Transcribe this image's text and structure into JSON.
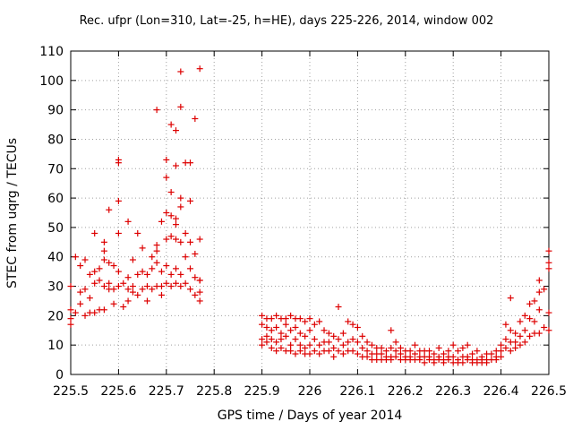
{
  "chart_data": {
    "type": "scatter",
    "title": "Rec. ufpr (Lon=310, Lat=-25, h=HE), days 225-226, 2014, window 002",
    "xlabel": "GPS time / Days of year 2014",
    "ylabel": "STEC from uqrg / TECUs",
    "xlim": [
      225.5,
      226.5
    ],
    "ylim": [
      0,
      110
    ],
    "xticks": [
      "225.5",
      "225.6",
      "225.7",
      "225.8",
      "225.9",
      "226",
      "226.1",
      "226.2",
      "226.3",
      "226.4",
      "226.5"
    ],
    "yticks": [
      "0",
      "10",
      "20",
      "30",
      "40",
      "50",
      "60",
      "70",
      "80",
      "90",
      "100",
      "110"
    ],
    "grid": true,
    "marker": "+",
    "color": "#dd0000",
    "series": [
      {
        "points": [
          [
            225.5,
            17
          ],
          [
            225.5,
            19
          ],
          [
            225.5,
            22
          ],
          [
            225.5,
            30
          ],
          [
            225.51,
            21
          ],
          [
            225.51,
            40
          ],
          [
            225.52,
            24
          ],
          [
            225.52,
            37
          ],
          [
            225.52,
            28
          ],
          [
            225.53,
            20
          ],
          [
            225.53,
            39
          ],
          [
            225.53,
            29
          ],
          [
            225.54,
            26
          ],
          [
            225.54,
            34
          ],
          [
            225.54,
            21
          ],
          [
            225.55,
            48
          ],
          [
            225.55,
            35
          ],
          [
            225.55,
            31
          ],
          [
            225.55,
            21
          ],
          [
            225.56,
            32
          ],
          [
            225.56,
            36
          ],
          [
            225.56,
            22
          ],
          [
            225.57,
            42
          ],
          [
            225.57,
            45
          ],
          [
            225.57,
            39
          ],
          [
            225.57,
            30
          ],
          [
            225.57,
            22
          ],
          [
            225.58,
            56
          ],
          [
            225.58,
            38
          ],
          [
            225.58,
            31
          ],
          [
            225.58,
            29
          ],
          [
            225.59,
            37
          ],
          [
            225.59,
            24
          ],
          [
            225.59,
            29
          ],
          [
            225.6,
            73
          ],
          [
            225.6,
            72
          ],
          [
            225.6,
            59
          ],
          [
            225.6,
            48
          ],
          [
            225.6,
            35
          ],
          [
            225.6,
            30
          ],
          [
            225.61,
            23
          ],
          [
            225.61,
            31
          ],
          [
            225.62,
            52
          ],
          [
            225.62,
            33
          ],
          [
            225.62,
            29
          ],
          [
            225.62,
            25
          ],
          [
            225.63,
            39
          ],
          [
            225.63,
            30
          ],
          [
            225.63,
            28
          ],
          [
            225.64,
            48
          ],
          [
            225.64,
            34
          ],
          [
            225.64,
            27
          ],
          [
            225.65,
            43
          ],
          [
            225.65,
            35
          ],
          [
            225.65,
            29
          ],
          [
            225.66,
            34
          ],
          [
            225.66,
            30
          ],
          [
            225.66,
            25
          ],
          [
            225.67,
            40
          ],
          [
            225.67,
            36
          ],
          [
            225.67,
            29
          ],
          [
            225.68,
            44
          ],
          [
            225.68,
            42
          ],
          [
            225.68,
            90
          ],
          [
            225.68,
            38
          ],
          [
            225.68,
            30
          ],
          [
            225.69,
            52
          ],
          [
            225.69,
            35
          ],
          [
            225.69,
            30
          ],
          [
            225.69,
            27
          ],
          [
            225.7,
            73
          ],
          [
            225.7,
            67
          ],
          [
            225.7,
            55
          ],
          [
            225.7,
            46
          ],
          [
            225.7,
            37
          ],
          [
            225.7,
            31
          ],
          [
            225.71,
            85
          ],
          [
            225.71,
            62
          ],
          [
            225.71,
            54
          ],
          [
            225.71,
            47
          ],
          [
            225.71,
            34
          ],
          [
            225.71,
            30
          ],
          [
            225.72,
            83
          ],
          [
            225.72,
            71
          ],
          [
            225.72,
            53
          ],
          [
            225.72,
            51
          ],
          [
            225.72,
            46
          ],
          [
            225.72,
            36
          ],
          [
            225.72,
            31
          ],
          [
            225.73,
            103
          ],
          [
            225.73,
            91
          ],
          [
            225.73,
            60
          ],
          [
            225.73,
            57
          ],
          [
            225.73,
            45
          ],
          [
            225.73,
            34
          ],
          [
            225.73,
            30
          ],
          [
            225.74,
            72
          ],
          [
            225.74,
            48
          ],
          [
            225.74,
            40
          ],
          [
            225.74,
            31
          ],
          [
            225.75,
            72
          ],
          [
            225.75,
            59
          ],
          [
            225.75,
            45
          ],
          [
            225.75,
            36
          ],
          [
            225.75,
            29
          ],
          [
            225.76,
            87
          ],
          [
            225.76,
            41
          ],
          [
            225.76,
            33
          ],
          [
            225.76,
            27
          ],
          [
            225.77,
            104
          ],
          [
            225.77,
            46
          ],
          [
            225.77,
            32
          ],
          [
            225.77,
            32
          ],
          [
            225.77,
            28
          ],
          [
            225.77,
            25
          ],
          [
            225.9,
            20
          ],
          [
            225.9,
            17
          ],
          [
            225.9,
            12
          ],
          [
            225.9,
            10
          ],
          [
            225.91,
            19
          ],
          [
            225.91,
            16
          ],
          [
            225.91,
            13
          ],
          [
            225.91,
            11
          ],
          [
            225.92,
            19
          ],
          [
            225.92,
            15
          ],
          [
            225.92,
            12
          ],
          [
            225.92,
            9
          ],
          [
            225.93,
            20
          ],
          [
            225.93,
            16
          ],
          [
            225.93,
            11
          ],
          [
            225.93,
            8
          ],
          [
            225.94,
            19
          ],
          [
            225.94,
            14
          ],
          [
            225.94,
            12
          ],
          [
            225.94,
            9
          ],
          [
            225.95,
            19
          ],
          [
            225.95,
            17
          ],
          [
            225.95,
            13
          ],
          [
            225.95,
            8
          ],
          [
            225.96,
            20
          ],
          [
            225.96,
            15
          ],
          [
            225.96,
            10
          ],
          [
            225.96,
            8
          ],
          [
            225.97,
            19
          ],
          [
            225.97,
            16
          ],
          [
            225.97,
            12
          ],
          [
            225.97,
            7
          ],
          [
            225.98,
            19
          ],
          [
            225.98,
            14
          ],
          [
            225.98,
            10
          ],
          [
            225.98,
            8
          ],
          [
            225.99,
            18
          ],
          [
            225.99,
            13
          ],
          [
            225.99,
            9
          ],
          [
            225.99,
            7
          ],
          [
            226.0,
            19
          ],
          [
            226.0,
            15
          ],
          [
            226.0,
            10
          ],
          [
            226.0,
            7
          ],
          [
            226.01,
            17
          ],
          [
            226.01,
            12
          ],
          [
            226.01,
            8
          ],
          [
            226.02,
            18
          ],
          [
            226.02,
            10
          ],
          [
            226.02,
            7
          ],
          [
            226.03,
            15
          ],
          [
            226.03,
            11
          ],
          [
            226.03,
            8
          ],
          [
            226.04,
            14
          ],
          [
            226.04,
            11
          ],
          [
            226.04,
            8
          ],
          [
            226.05,
            13
          ],
          [
            226.05,
            9
          ],
          [
            226.05,
            6
          ],
          [
            226.06,
            23
          ],
          [
            226.06,
            12
          ],
          [
            226.06,
            8
          ],
          [
            226.07,
            14
          ],
          [
            226.07,
            10
          ],
          [
            226.07,
            7
          ],
          [
            226.08,
            18
          ],
          [
            226.08,
            11
          ],
          [
            226.08,
            8
          ],
          [
            226.09,
            17
          ],
          [
            226.09,
            12
          ],
          [
            226.09,
            8
          ],
          [
            226.1,
            16
          ],
          [
            226.1,
            11
          ],
          [
            226.1,
            7
          ],
          [
            226.11,
            13
          ],
          [
            226.11,
            9
          ],
          [
            226.11,
            6
          ],
          [
            226.12,
            11
          ],
          [
            226.12,
            8
          ],
          [
            226.12,
            6
          ],
          [
            226.13,
            10
          ],
          [
            226.13,
            7
          ],
          [
            226.13,
            5
          ],
          [
            226.14,
            9
          ],
          [
            226.14,
            7
          ],
          [
            226.14,
            5
          ],
          [
            226.15,
            9
          ],
          [
            226.15,
            7
          ],
          [
            226.15,
            5
          ],
          [
            226.16,
            8
          ],
          [
            226.16,
            6
          ],
          [
            226.16,
            5
          ],
          [
            226.17,
            15
          ],
          [
            226.17,
            9
          ],
          [
            226.17,
            6
          ],
          [
            226.17,
            5
          ],
          [
            226.18,
            11
          ],
          [
            226.18,
            8
          ],
          [
            226.18,
            6
          ],
          [
            226.19,
            9
          ],
          [
            226.19,
            7
          ],
          [
            226.19,
            5
          ],
          [
            226.2,
            8
          ],
          [
            226.2,
            6
          ],
          [
            226.2,
            5
          ],
          [
            226.21,
            8
          ],
          [
            226.21,
            6
          ],
          [
            226.21,
            5
          ],
          [
            226.22,
            10
          ],
          [
            226.22,
            7
          ],
          [
            226.22,
            5
          ],
          [
            226.23,
            8
          ],
          [
            226.23,
            6
          ],
          [
            226.23,
            5
          ],
          [
            226.24,
            8
          ],
          [
            226.24,
            6
          ],
          [
            226.24,
            4
          ],
          [
            226.25,
            8
          ],
          [
            226.25,
            6
          ],
          [
            226.25,
            5
          ],
          [
            226.26,
            7
          ],
          [
            226.26,
            5
          ],
          [
            226.26,
            4
          ],
          [
            226.27,
            9
          ],
          [
            226.27,
            6
          ],
          [
            226.27,
            5
          ],
          [
            226.28,
            7
          ],
          [
            226.28,
            5
          ],
          [
            226.28,
            4
          ],
          [
            226.29,
            8
          ],
          [
            226.29,
            6
          ],
          [
            226.29,
            5
          ],
          [
            226.3,
            10
          ],
          [
            226.3,
            6
          ],
          [
            226.3,
            4
          ],
          [
            226.31,
            8
          ],
          [
            226.31,
            5
          ],
          [
            226.31,
            4
          ],
          [
            226.32,
            9
          ],
          [
            226.32,
            6
          ],
          [
            226.32,
            4
          ],
          [
            226.33,
            10
          ],
          [
            226.33,
            6
          ],
          [
            226.33,
            5
          ],
          [
            226.34,
            7
          ],
          [
            226.34,
            5
          ],
          [
            226.34,
            4
          ],
          [
            226.35,
            8
          ],
          [
            226.35,
            5
          ],
          [
            226.35,
            4
          ],
          [
            226.36,
            6
          ],
          [
            226.36,
            5
          ],
          [
            226.36,
            4
          ],
          [
            226.37,
            7
          ],
          [
            226.37,
            5
          ],
          [
            226.37,
            4
          ],
          [
            226.38,
            7
          ],
          [
            226.38,
            5
          ],
          [
            226.39,
            8
          ],
          [
            226.39,
            6
          ],
          [
            226.39,
            5
          ],
          [
            226.4,
            10
          ],
          [
            226.4,
            8
          ],
          [
            226.4,
            6
          ],
          [
            226.41,
            17
          ],
          [
            226.41,
            12
          ],
          [
            226.41,
            9
          ],
          [
            226.42,
            26
          ],
          [
            226.42,
            15
          ],
          [
            226.42,
            11
          ],
          [
            226.42,
            8
          ],
          [
            226.43,
            14
          ],
          [
            226.43,
            11
          ],
          [
            226.43,
            9
          ],
          [
            226.44,
            18
          ],
          [
            226.44,
            13
          ],
          [
            226.44,
            10
          ],
          [
            226.45,
            20
          ],
          [
            226.45,
            15
          ],
          [
            226.45,
            11
          ],
          [
            226.46,
            24
          ],
          [
            226.46,
            19
          ],
          [
            226.46,
            13
          ],
          [
            226.47,
            25
          ],
          [
            226.47,
            18
          ],
          [
            226.47,
            14
          ],
          [
            226.48,
            32
          ],
          [
            226.48,
            28
          ],
          [
            226.48,
            22
          ],
          [
            226.48,
            14
          ],
          [
            226.49,
            29
          ],
          [
            226.49,
            16
          ],
          [
            226.5,
            42
          ],
          [
            226.5,
            38
          ],
          [
            226.5,
            36
          ],
          [
            226.5,
            21
          ],
          [
            226.5,
            15
          ]
        ]
      }
    ]
  }
}
